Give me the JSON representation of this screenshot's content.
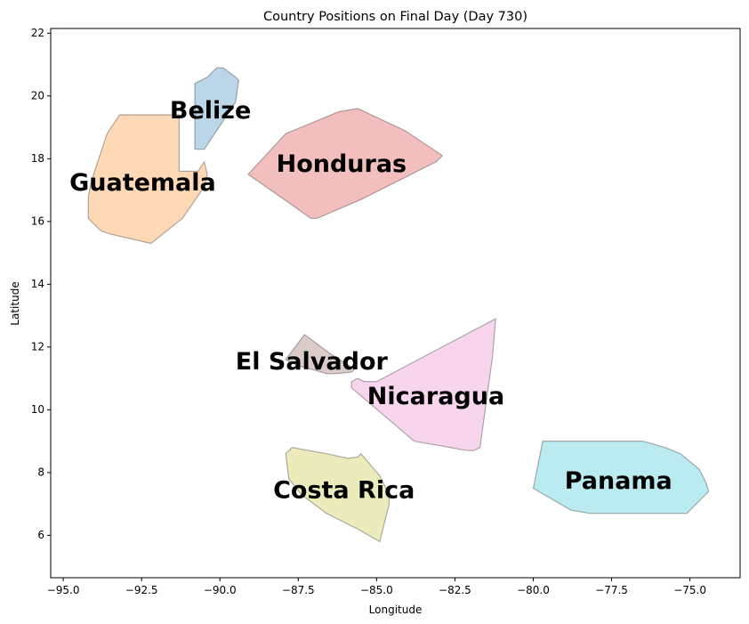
{
  "chart_data": {
    "type": "map",
    "title": "Country Positions on Final Day (Day 730)",
    "xlabel": "Longitude",
    "ylabel": "Latitude",
    "xlim": [
      -95.4,
      -73.4
    ],
    "ylim": [
      4.65,
      22.15
    ],
    "xticks": [
      -95.0,
      -92.5,
      -90.0,
      -87.5,
      -85.0,
      -82.5,
      -80.0,
      -77.5,
      -75.0
    ],
    "xtick_labels": [
      "−95.0",
      "−92.5",
      "−90.0",
      "−87.5",
      "−85.0",
      "−82.5",
      "−80.0",
      "−77.5",
      "−75.0"
    ],
    "yticks": [
      6,
      8,
      10,
      12,
      14,
      16,
      18,
      20,
      22
    ],
    "ytick_labels": [
      "6",
      "8",
      "10",
      "12",
      "14",
      "16",
      "18",
      "20",
      "22"
    ],
    "grid": false,
    "series": [
      {
        "name": "Belize",
        "color": "#1f77b4",
        "label_pos": [
          -91.6,
          19.5
        ],
        "polygon": [
          [
            -90.8,
            18.3
          ],
          [
            -90.5,
            18.3
          ],
          [
            -89.9,
            19.2
          ],
          [
            -89.5,
            19.8
          ],
          [
            -89.4,
            20.5
          ],
          [
            -89.5,
            20.6
          ],
          [
            -89.9,
            20.9
          ],
          [
            -90.1,
            20.9
          ],
          [
            -90.4,
            20.6
          ],
          [
            -90.8,
            20.4
          ]
        ]
      },
      {
        "name": "Guatemala",
        "color": "#ff7f0e",
        "label_pos": [
          -94.8,
          17.2
        ],
        "polygon": [
          [
            -94.2,
            16.1
          ],
          [
            -93.8,
            15.7
          ],
          [
            -93.5,
            15.6
          ],
          [
            -92.2,
            15.3
          ],
          [
            -91.2,
            16.1
          ],
          [
            -90.5,
            17.1
          ],
          [
            -90.4,
            17.5
          ],
          [
            -90.5,
            17.9
          ],
          [
            -90.7,
            17.6
          ],
          [
            -91.3,
            17.6
          ],
          [
            -91.3,
            19.4
          ],
          [
            -93.2,
            19.4
          ],
          [
            -93.6,
            18.8
          ],
          [
            -94.1,
            17.3
          ],
          [
            -94.2,
            16.8
          ]
        ]
      },
      {
        "name": "Honduras",
        "color": "#d62728",
        "label_pos": [
          -88.2,
          17.8
        ],
        "polygon": [
          [
            -89.1,
            17.5
          ],
          [
            -87.9,
            18.8
          ],
          [
            -86.2,
            19.5
          ],
          [
            -85.6,
            19.6
          ],
          [
            -84.1,
            18.9
          ],
          [
            -82.9,
            18.1
          ],
          [
            -83.1,
            17.9
          ],
          [
            -85.5,
            16.7
          ],
          [
            -86.9,
            16.1
          ],
          [
            -87.1,
            16.1
          ],
          [
            -87.8,
            16.6
          ]
        ]
      },
      {
        "name": "El Salvador",
        "color": "#8c564b",
        "label_pos": [
          -89.5,
          11.5
        ],
        "polygon": [
          [
            -87.9,
            11.6
          ],
          [
            -87.3,
            12.4
          ],
          [
            -86.5,
            11.8
          ],
          [
            -85.7,
            11.3
          ],
          [
            -85.8,
            11.2
          ],
          [
            -86.3,
            11.15
          ],
          [
            -86.6,
            11.15
          ],
          [
            -87.1,
            11.3
          ],
          [
            -87.5,
            11.4
          ]
        ]
      },
      {
        "name": "Nicaragua",
        "color": "#e377c2",
        "label_pos": [
          -85.3,
          10.4
        ],
        "polygon": [
          [
            -85.8,
            10.7
          ],
          [
            -83.8,
            9.0
          ],
          [
            -82.1,
            8.7
          ],
          [
            -81.9,
            8.7
          ],
          [
            -81.7,
            8.8
          ],
          [
            -81.3,
            11.7
          ],
          [
            -81.2,
            12.9
          ],
          [
            -85.0,
            10.9
          ],
          [
            -85.4,
            10.9
          ],
          [
            -85.6,
            11.0
          ],
          [
            -85.8,
            10.9
          ]
        ]
      },
      {
        "name": "Costa Rica",
        "color": "#bcbd22",
        "label_pos": [
          -88.3,
          7.4
        ],
        "polygon": [
          [
            -87.9,
            8.6
          ],
          [
            -87.8,
            7.8
          ],
          [
            -87.4,
            7.3
          ],
          [
            -86.6,
            6.7
          ],
          [
            -85.6,
            6.2
          ],
          [
            -84.9,
            5.8
          ],
          [
            -84.6,
            7.0
          ],
          [
            -84.6,
            7.3
          ],
          [
            -84.9,
            7.9
          ],
          [
            -85.5,
            8.6
          ],
          [
            -85.6,
            8.5
          ],
          [
            -85.9,
            8.45
          ],
          [
            -86.6,
            8.6
          ],
          [
            -87.7,
            8.8
          ]
        ]
      },
      {
        "name": "Panama",
        "color": "#17becf",
        "label_pos": [
          -79.0,
          7.7
        ],
        "polygon": [
          [
            -80.0,
            7.5
          ],
          [
            -78.8,
            6.8
          ],
          [
            -78.2,
            6.7
          ],
          [
            -75.1,
            6.7
          ],
          [
            -74.8,
            7.0
          ],
          [
            -74.4,
            7.4
          ],
          [
            -74.5,
            7.7
          ],
          [
            -74.7,
            8.1
          ],
          [
            -75.3,
            8.6
          ],
          [
            -75.8,
            8.8
          ],
          [
            -76.5,
            9.0
          ],
          [
            -79.7,
            9.0
          ]
        ]
      }
    ]
  }
}
